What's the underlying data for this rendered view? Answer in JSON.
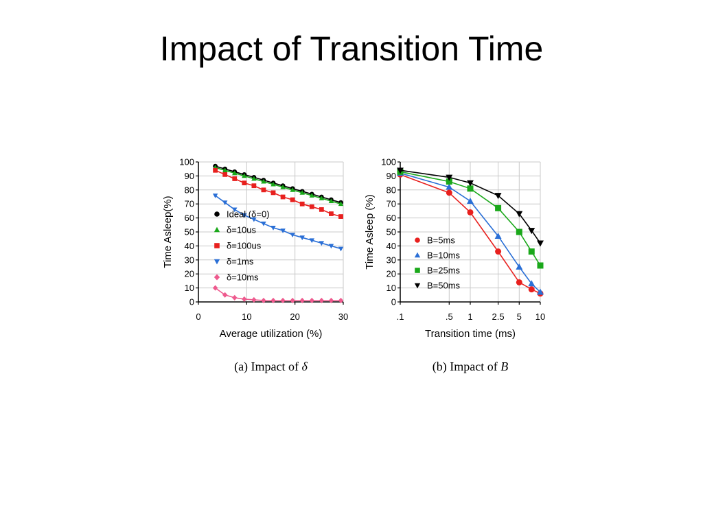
{
  "slide": {
    "title": "Impact of Transition Time"
  },
  "chart_data": [
    {
      "id": "a",
      "type": "line",
      "caption_prefix": "(a) Impact of ",
      "caption_symbol": "δ",
      "xlabel": "Average utilization (%)",
      "ylabel": "Time Asleep(%)",
      "xlim": [
        0,
        30
      ],
      "ylim": [
        0,
        100
      ],
      "xticks": [
        0,
        10,
        20,
        30
      ],
      "xtick_labels": [
        "0",
        "10",
        "20",
        "30"
      ],
      "yticks": [
        0,
        10,
        20,
        30,
        40,
        50,
        60,
        70,
        80,
        90,
        100
      ],
      "grid": true,
      "legend_position": "left",
      "x": [
        3.5,
        5.5,
        7.5,
        9.5,
        11.5,
        13.5,
        15.5,
        17.5,
        19.5,
        21.5,
        23.5,
        25.5,
        27.5,
        29.5
      ],
      "series": [
        {
          "name": "Ideal (δ=0)",
          "color": "#000000",
          "marker": "circle",
          "values": [
            97,
            95,
            93,
            91,
            89,
            87,
            85,
            83,
            81,
            79,
            77,
            75,
            73,
            71
          ]
        },
        {
          "name": "δ=10us",
          "color": "#1aa81a",
          "marker": "triangle-up",
          "values": [
            96,
            94,
            92,
            90,
            88,
            86,
            84,
            82,
            80,
            78,
            76,
            74,
            72,
            70
          ]
        },
        {
          "name": "δ=100us",
          "color": "#e8201e",
          "marker": "square",
          "values": [
            94,
            91,
            88,
            85,
            83,
            80,
            78,
            75,
            73,
            70,
            68,
            66,
            63,
            61
          ]
        },
        {
          "name": "δ=1ms",
          "color": "#2a6fd6",
          "marker": "triangle-down",
          "values": [
            76,
            71,
            66,
            62,
            59,
            56,
            53,
            51,
            48,
            46,
            44,
            42,
            40,
            38
          ]
        },
        {
          "name": "δ=10ms",
          "color": "#ee5a8e",
          "marker": "diamond",
          "values": [
            10,
            5,
            3,
            2,
            1.5,
            1,
            1,
            1,
            1,
            1,
            1,
            1,
            1,
            1
          ]
        }
      ]
    },
    {
      "id": "b",
      "type": "line",
      "caption_prefix": "(b) Impact of ",
      "caption_symbol": "B",
      "xlabel": "Transition time (ms)",
      "ylabel": "Time Asleep (%)",
      "xscale": "log",
      "xlim": [
        0.1,
        10
      ],
      "ylim": [
        0,
        100
      ],
      "xticks": [
        0.1,
        0.5,
        1,
        2.5,
        5,
        10
      ],
      "xtick_labels": [
        ".1",
        ".5",
        "1",
        "2.5",
        "5",
        "10"
      ],
      "yticks": [
        0,
        10,
        20,
        30,
        40,
        50,
        60,
        70,
        80,
        90,
        100
      ],
      "grid": true,
      "legend_position": "bottom-left",
      "x": [
        0.1,
        0.5,
        1,
        2.5,
        5,
        7.5,
        10
      ],
      "series": [
        {
          "name": "B=5ms",
          "color": "#e8201e",
          "marker": "circle",
          "values": [
            91,
            78,
            64,
            36,
            14,
            9,
            6
          ]
        },
        {
          "name": "B=10ms",
          "color": "#2a6fd6",
          "marker": "triangle-up",
          "values": [
            92,
            82,
            72,
            47,
            25,
            13,
            7
          ]
        },
        {
          "name": "B=25ms",
          "color": "#1aa81a",
          "marker": "square",
          "values": [
            93,
            86,
            81,
            67,
            50,
            36,
            26
          ]
        },
        {
          "name": "B=50ms",
          "color": "#000000",
          "marker": "triangle-down",
          "values": [
            94,
            89,
            85,
            76,
            63,
            51,
            42
          ]
        }
      ]
    }
  ]
}
